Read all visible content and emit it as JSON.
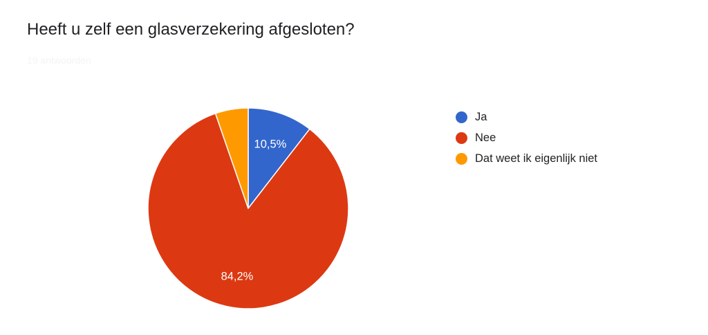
{
  "title": "Heeft u zelf een glasverzekering afgesloten?",
  "subtitle": "19 antwoorden",
  "chart_data": {
    "type": "pie",
    "title": "Heeft u zelf een glasverzekering afgesloten?",
    "start_angle_deg": 90,
    "direction": "clockwise",
    "legend_position": "right",
    "slices": [
      {
        "label": "Ja",
        "value": 10.5,
        "display": "10,5%",
        "color": "#3366cc"
      },
      {
        "label": "Nee",
        "value": 84.2,
        "display": "84,2%",
        "color": "#dc3912"
      },
      {
        "label": "Dat weet ik eigenlijk niet",
        "value": 5.3,
        "display": "",
        "color": "#ff9900"
      }
    ]
  }
}
